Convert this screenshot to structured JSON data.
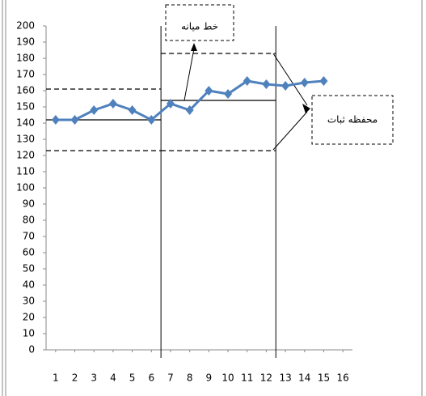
{
  "chart_data": {
    "type": "line",
    "x": [
      1,
      2,
      3,
      4,
      5,
      6,
      7,
      8,
      9,
      10,
      11,
      12,
      13,
      14,
      15
    ],
    "series": [
      {
        "color": "#4f81bd",
        "values": [
          142,
          142,
          148,
          152,
          148,
          142,
          152,
          148,
          160,
          158,
          166,
          164,
          163,
          165,
          166
        ]
      }
    ],
    "xlim": [
      0.5,
      16.5
    ],
    "xticks": [
      1,
      2,
      3,
      4,
      5,
      6,
      7,
      8,
      9,
      10,
      11,
      12,
      13,
      14,
      15,
      16
    ],
    "ylim": [
      0,
      200
    ],
    "yticks": [
      0,
      10,
      20,
      30,
      40,
      50,
      60,
      70,
      80,
      90,
      100,
      110,
      120,
      130,
      140,
      150,
      160,
      170,
      180,
      190,
      200
    ],
    "grid": false,
    "phase_changes": [
      6.5,
      12.5
    ],
    "limits": [
      {
        "x0": 0.5,
        "x1": 6.5,
        "center": 142,
        "upper": 161,
        "lower": 123
      },
      {
        "x0": 6.5,
        "x1": 12.5,
        "center": 154,
        "upper": 183,
        "lower": 123
      }
    ],
    "annotations": [
      "خط میانه",
      "محفظه ثبات"
    ]
  }
}
